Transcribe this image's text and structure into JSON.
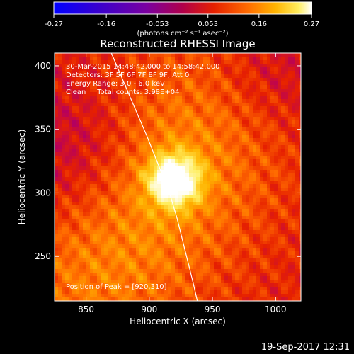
{
  "colorbar": {
    "ticks": [
      "-0.27",
      "-0.16",
      "-0.053",
      "0.053",
      "0.16",
      "0.27"
    ],
    "units": "(photons cm⁻² s⁻¹ asec⁻²)"
  },
  "annotations": {
    "time_range": "30-Mar-2015 14:48:42.000 to 14:58:42.000",
    "detectors": "Detectors: 3F 5F 6F 7F 8F 9F, Att 0",
    "energy": "Energy Range: 3.0 - 6.0 keV",
    "clean": "Clean     Total counts: 3.98E+04",
    "peak": "Position of Peak = [920,310]"
  },
  "footer": {
    "date": "19-Sep-2017 12:31"
  },
  "chart_data": {
    "type": "heatmap",
    "title": "Reconstructed RHESSI Image",
    "xlabel": "Heliocentric X (arcsec)",
    "ylabel": "Heliocentric Y (arcsec)",
    "xlim": [
      825,
      1020
    ],
    "ylim": [
      215,
      410
    ],
    "xticks": [
      850,
      900,
      950,
      1000
    ],
    "yticks": [
      250,
      300,
      350,
      400
    ],
    "color_range": [
      -0.27,
      0.27
    ],
    "colormap": [
      "#0000ff",
      "#3b00cc",
      "#7a00a0",
      "#b8005a",
      "#e62000",
      "#ff6a00",
      "#ffb400",
      "#ffee60",
      "#ffffff"
    ],
    "peak": [
      920,
      310
    ],
    "limb_x": [
      870,
      885,
      898,
      908,
      916,
      922,
      927,
      932,
      935,
      938
    ],
    "limb_y": [
      410,
      375,
      345,
      320,
      300,
      280,
      260,
      240,
      228,
      215
    ]
  }
}
